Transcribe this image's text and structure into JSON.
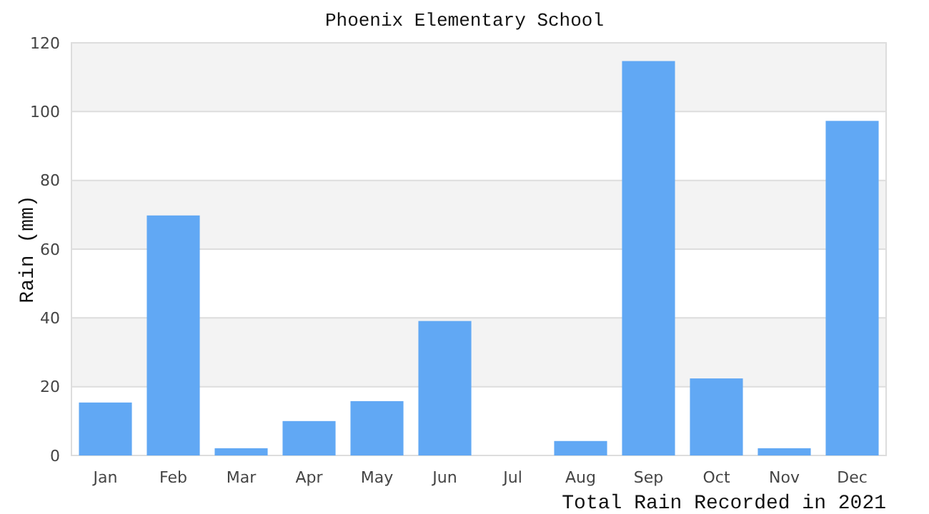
{
  "chart_data": {
    "type": "bar",
    "title": "Phoenix Elementary School",
    "xlabel": "Total Rain Recorded in 2021",
    "ylabel": "Rain (mm)",
    "categories": [
      "Jan",
      "Feb",
      "Mar",
      "Apr",
      "May",
      "Jun",
      "Jul",
      "Aug",
      "Sep",
      "Oct",
      "Nov",
      "Dec"
    ],
    "values": [
      15.4,
      69.8,
      2.1,
      10,
      15.8,
      39.1,
      0,
      4.2,
      114.7,
      22.4,
      2.1,
      97.3
    ],
    "color": "#61a8f4",
    "ylim": [
      0,
      120
    ],
    "yticks": [
      0,
      20,
      40,
      60,
      80,
      100,
      120
    ],
    "grid": "y"
  }
}
